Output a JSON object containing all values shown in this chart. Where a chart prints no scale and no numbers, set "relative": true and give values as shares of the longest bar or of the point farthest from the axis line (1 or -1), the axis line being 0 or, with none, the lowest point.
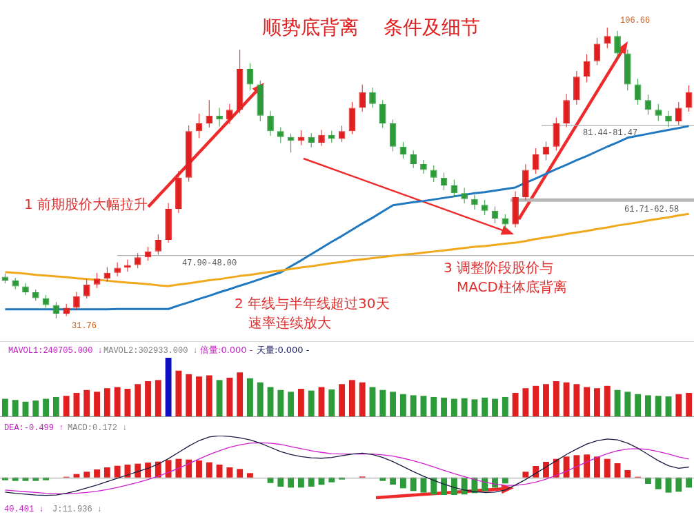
{
  "chart_data": [
    {
      "type": "candlestick",
      "title": "顺势底背离    条件及细节",
      "categories": [
        null,
        null,
        null,
        null,
        null,
        null,
        null,
        null,
        null,
        null,
        null,
        null,
        null,
        null,
        null,
        null,
        null,
        null,
        null,
        null,
        null,
        null,
        null,
        null,
        null,
        null,
        null,
        null,
        null,
        null,
        null,
        null,
        null,
        null,
        null,
        null,
        null,
        null,
        null,
        null,
        null,
        null,
        null,
        null,
        null,
        null,
        null,
        null,
        null,
        null,
        null,
        null,
        null,
        null,
        null,
        null,
        null,
        null,
        null,
        null,
        null,
        null,
        null,
        null,
        null,
        null,
        null,
        null
      ],
      "ohlc": [
        [
          42.5,
          43.3,
          40.8,
          41.5
        ],
        [
          41.5,
          42.2,
          39.3,
          40.0
        ],
        [
          40.0,
          40.9,
          37.8,
          38.5
        ],
        [
          38.5,
          39.2,
          36.3,
          37.0
        ],
        [
          37.0,
          37.8,
          34.5,
          35.2
        ],
        [
          35.2,
          36.0,
          31.76,
          33.0
        ],
        [
          33.0,
          35.5,
          32.4,
          34.5
        ],
        [
          34.5,
          38.6,
          33.9,
          37.5
        ],
        [
          37.5,
          41.8,
          36.9,
          40.5
        ],
        [
          40.5,
          43.5,
          39.6,
          42.0
        ],
        [
          42.0,
          45.0,
          41.2,
          43.5
        ],
        [
          43.5,
          46.2,
          42.6,
          44.8
        ],
        [
          44.8,
          46.9,
          43.8,
          45.5
        ],
        [
          45.5,
          48.6,
          44.7,
          47.5
        ],
        [
          47.5,
          50.2,
          46.6,
          49.0
        ],
        [
          49.0,
          53.4,
          48.2,
          52.0
        ],
        [
          52.0,
          61.5,
          51.3,
          60.0
        ],
        [
          60.0,
          69.8,
          58.9,
          68.0
        ],
        [
          68.0,
          81.5,
          67.0,
          80.0
        ],
        [
          80.0,
          84.5,
          78.2,
          82.0
        ],
        [
          82.0,
          88.0,
          80.9,
          84.0
        ],
        [
          84.0,
          86.0,
          81.2,
          83.0
        ],
        [
          83.0,
          87.0,
          81.8,
          85.5
        ],
        [
          85.5,
          101.0,
          84.6,
          96.0
        ],
        [
          96.0,
          97.5,
          90.5,
          92.0
        ],
        [
          92.0,
          93.0,
          82.5,
          84.0
        ],
        [
          84.0,
          85.2,
          78.8,
          80.0
        ],
        [
          80.0,
          81.0,
          76.9,
          78.5
        ],
        [
          78.5,
          79.4,
          74.5,
          77.5
        ],
        [
          77.5,
          80.2,
          76.4,
          78.5
        ],
        [
          78.5,
          79.5,
          75.8,
          77.0
        ],
        [
          77.0,
          80.3,
          76.2,
          79.0
        ],
        [
          79.0,
          80.1,
          77.0,
          78.0
        ],
        [
          78.0,
          81.4,
          77.2,
          80.0
        ],
        [
          80.0,
          87.5,
          79.2,
          86.0
        ],
        [
          86.0,
          92.0,
          85.0,
          90.0
        ],
        [
          90.0,
          91.2,
          86.0,
          87.0
        ],
        [
          87.0,
          88.0,
          80.8,
          82.0
        ],
        [
          82.0,
          83.0,
          74.8,
          76.0
        ],
        [
          76.0,
          77.2,
          72.9,
          74.0
        ],
        [
          74.0,
          75.0,
          70.5,
          71.5
        ],
        [
          71.5,
          72.6,
          69.0,
          70.0
        ],
        [
          70.0,
          71.2,
          66.9,
          68.0
        ],
        [
          68.0,
          69.3,
          64.8,
          66.0
        ],
        [
          66.0,
          67.5,
          63.0,
          64.0
        ],
        [
          64.0,
          65.4,
          61.4,
          62.5
        ],
        [
          62.5,
          63.6,
          59.8,
          61.0
        ],
        [
          61.0,
          62.3,
          58.4,
          59.5
        ],
        [
          59.5,
          60.6,
          56.3,
          57.5
        ],
        [
          57.5,
          58.6,
          54.9,
          56.0
        ],
        [
          56.0,
          64.5,
          55.2,
          63.0
        ],
        [
          63.0,
          71.5,
          62.2,
          70.0
        ],
        [
          70.0,
          75.6,
          69.0,
          74.0
        ],
        [
          74.0,
          77.3,
          72.5,
          76.0
        ],
        [
          76.0,
          83.5,
          75.0,
          82.0
        ],
        [
          82.0,
          89.6,
          81.0,
          88.0
        ],
        [
          88.0,
          95.5,
          86.8,
          94.0
        ],
        [
          94.0,
          99.8,
          92.6,
          98.0
        ],
        [
          98.0,
          104.0,
          97.0,
          102.5
        ],
        [
          102.5,
          106.66,
          101.3,
          104.5
        ],
        [
          104.5,
          105.8,
          98.8,
          100.0
        ],
        [
          100.0,
          101.0,
          90.5,
          92.0
        ],
        [
          92.0,
          93.5,
          86.8,
          88.0
        ],
        [
          88.0,
          89.4,
          84.2,
          85.5
        ],
        [
          85.5,
          87.0,
          82.6,
          84.0
        ],
        [
          84.0,
          85.2,
          81.0,
          82.5
        ],
        [
          82.5,
          87.5,
          81.6,
          86.0
        ],
        [
          86.0,
          91.8,
          85.0,
          90.0
        ]
      ],
      "colors": [
        "#2e9b3a",
        "#2e9b3a",
        "#2e9b3a",
        "#2e9b3a",
        "#2e9b3a",
        "#2e9b3a",
        "#e02020",
        "#e02020",
        "#e02020",
        "#e02020",
        "#e02020",
        "#e02020",
        "#e02020",
        "#e02020",
        "#e02020",
        "#e02020",
        "#e02020",
        "#e02020",
        "#e02020",
        "#e02020",
        "#e02020",
        "#2e9b3a",
        "#e02020",
        "#e02020",
        "#2e9b3a",
        "#2e9b3a",
        "#2e9b3a",
        "#2e9b3a",
        "#2e9b3a",
        "#e02020",
        "#2e9b3a",
        "#e02020",
        "#2e9b3a",
        "#e02020",
        "#e02020",
        "#e02020",
        "#2e9b3a",
        "#2e9b3a",
        "#2e9b3a",
        "#2e9b3a",
        "#2e9b3a",
        "#2e9b3a",
        "#2e9b3a",
        "#2e9b3a",
        "#2e9b3a",
        "#2e9b3a",
        "#2e9b3a",
        "#2e9b3a",
        "#2e9b3a",
        "#2e9b3a",
        "#e02020",
        "#e02020",
        "#e02020",
        "#e02020",
        "#e02020",
        "#e02020",
        "#e02020",
        "#e02020",
        "#e02020",
        "#e02020",
        "#2e9b3a",
        "#2e9b3a",
        "#2e9b3a",
        "#2e9b3a",
        "#2e9b3a",
        "#2e9b3a",
        "#e02020",
        "#e02020"
      ],
      "series": [
        {
          "type": "line",
          "color": "#f0a81c",
          "values": [
            43.7,
            43.5,
            43.3,
            43.0,
            42.8,
            42.6,
            42.4,
            42.1,
            41.9,
            41.7,
            41.5,
            41.2,
            41.0,
            40.8,
            40.6,
            40.3,
            40.1,
            40.5,
            40.8,
            41.2,
            41.6,
            41.9,
            42.3,
            42.7,
            43.0,
            43.4,
            43.8,
            44.1,
            44.5,
            44.9,
            45.2,
            45.6,
            46.0,
            46.3,
            46.7,
            47.0,
            47.3,
            47.6,
            47.9,
            48.2,
            48.4,
            48.7,
            49.0,
            49.3,
            49.6,
            49.9,
            50.2,
            50.4,
            50.7,
            51.0,
            51.3,
            51.7,
            52.2,
            52.6,
            53.0,
            53.5,
            53.9,
            54.3,
            54.8,
            55.2,
            55.7,
            56.1,
            56.5,
            57.0,
            57.4,
            57.8,
            58.3,
            58.7
          ]
        },
        {
          "type": "line",
          "color": "#1f78c0",
          "values": [
            34.1,
            34.1,
            34.1,
            34.1,
            34.1,
            34.1,
            34.1,
            34.1,
            34.1,
            34.1,
            34.1,
            34.2,
            34.2,
            34.2,
            34.2,
            34.2,
            34.2,
            35.1,
            35.9,
            36.8,
            37.6,
            38.5,
            39.3,
            40.2,
            41.0,
            41.9,
            42.8,
            43.6,
            45.2,
            46.7,
            48.3,
            49.9,
            51.5,
            53.0,
            54.6,
            56.2,
            57.7,
            59.3,
            60.9,
            61.3,
            61.7,
            62.0,
            62.4,
            62.8,
            63.2,
            63.6,
            64.0,
            64.3,
            64.7,
            65.1,
            65.5,
            66.7,
            67.8,
            69.0,
            70.2,
            71.3,
            72.5,
            73.6,
            74.8,
            76.0,
            77.1,
            78.3,
            78.8,
            79.3,
            79.8,
            80.3,
            80.8,
            81.3
          ]
        }
      ],
      "bands": [
        {
          "axis": "y",
          "from": 47.9,
          "to": 48.0,
          "label": "47.90-48.00",
          "color": "#b0b0b0"
        },
        {
          "axis": "y",
          "from": 81.44,
          "to": 81.47,
          "label": "81.44-81.47",
          "color": "#b0b0b0"
        },
        {
          "axis": "y",
          "from": 61.71,
          "to": 62.58,
          "label": "61.71-62.58",
          "color": "#b8b8b8"
        }
      ],
      "annotations": [
        "1 前期股价大幅拉升",
        "2 年线与半年线超过30天",
        "速率连续放大",
        "3 调整阶段股价与",
        "MACD柱体底背离",
        "106.66",
        "31.76"
      ]
    },
    {
      "type": "bar",
      "relative": true,
      "categories": [
        null,
        null,
        null,
        null,
        null,
        null,
        null,
        null,
        null,
        null,
        null,
        null,
        null,
        null,
        null,
        null,
        null,
        null,
        null,
        null,
        null,
        null,
        null,
        null,
        null,
        null,
        null,
        null,
        null,
        null,
        null,
        null,
        null,
        null,
        null,
        null,
        null,
        null,
        null,
        null,
        null,
        null,
        null,
        null,
        null,
        null,
        null,
        null,
        null,
        null,
        null,
        null,
        null,
        null,
        null,
        null,
        null,
        null,
        null,
        null,
        null,
        null,
        null,
        null,
        null,
        null,
        null,
        null
      ],
      "values": [
        0.3,
        0.28,
        0.25,
        0.27,
        0.3,
        0.33,
        0.35,
        0.4,
        0.45,
        0.42,
        0.48,
        0.5,
        0.47,
        0.55,
        0.6,
        0.62,
        1.0,
        0.78,
        0.72,
        0.68,
        0.7,
        0.62,
        0.66,
        0.75,
        0.65,
        0.58,
        0.5,
        0.45,
        0.42,
        0.47,
        0.44,
        0.5,
        0.46,
        0.55,
        0.62,
        0.58,
        0.5,
        0.45,
        0.42,
        0.38,
        0.36,
        0.35,
        0.33,
        0.32,
        0.3,
        0.31,
        0.29,
        0.32,
        0.3,
        0.33,
        0.4,
        0.48,
        0.52,
        0.55,
        0.6,
        0.58,
        0.55,
        0.5,
        0.48,
        0.52,
        0.45,
        0.42,
        0.38,
        0.36,
        0.35,
        0.34,
        0.38,
        0.4
      ],
      "colors": [
        "#2e9b3a",
        "#2e9b3a",
        "#2e9b3a",
        "#2e9b3a",
        "#2e9b3a",
        "#2e9b3a",
        "#e02020",
        "#e02020",
        "#e02020",
        "#e02020",
        "#e02020",
        "#e02020",
        "#e02020",
        "#e02020",
        "#e02020",
        "#e02020",
        "#1010c0",
        "#e02020",
        "#e02020",
        "#e02020",
        "#e02020",
        "#2e9b3a",
        "#e02020",
        "#e02020",
        "#2e9b3a",
        "#2e9b3a",
        "#2e9b3a",
        "#2e9b3a",
        "#2e9b3a",
        "#e02020",
        "#2e9b3a",
        "#e02020",
        "#2e9b3a",
        "#e02020",
        "#e02020",
        "#e02020",
        "#2e9b3a",
        "#2e9b3a",
        "#2e9b3a",
        "#2e9b3a",
        "#2e9b3a",
        "#2e9b3a",
        "#2e9b3a",
        "#2e9b3a",
        "#2e9b3a",
        "#2e9b3a",
        "#2e9b3a",
        "#2e9b3a",
        "#2e9b3a",
        "#2e9b3a",
        "#e02020",
        "#e02020",
        "#e02020",
        "#e02020",
        "#e02020",
        "#e02020",
        "#e02020",
        "#e02020",
        "#e02020",
        "#e02020",
        "#2e9b3a",
        "#2e9b3a",
        "#2e9b3a",
        "#2e9b3a",
        "#2e9b3a",
        "#2e9b3a",
        "#e02020",
        "#e02020"
      ],
      "annotations": [
        "MAVOL1:240705.000 ↓",
        "MAVOL2:302933.000 ↓",
        "倍量:0.000 -",
        "天量:0.000 -"
      ]
    },
    {
      "type": "bar",
      "relative": true,
      "categories": [
        null,
        null,
        null,
        null,
        null,
        null,
        null,
        null,
        null,
        null,
        null,
        null,
        null,
        null,
        null,
        null,
        null,
        null,
        null,
        null,
        null,
        null,
        null,
        null,
        null,
        null,
        null,
        null,
        null,
        null,
        null,
        null,
        null,
        null,
        null,
        null,
        null,
        null,
        null,
        null,
        null,
        null,
        null,
        null,
        null,
        null,
        null,
        null,
        null,
        null,
        null,
        null,
        null,
        null,
        null,
        null,
        null,
        null,
        null,
        null,
        null,
        null,
        null,
        null,
        null,
        null,
        null,
        null
      ],
      "values": [
        -0.12,
        -0.15,
        -0.15,
        -0.15,
        -0.12,
        null,
        0.03,
        0.15,
        0.25,
        0.35,
        0.44,
        0.51,
        0.56,
        0.6,
        0.65,
        0.69,
        0.76,
        0.81,
        0.78,
        0.74,
        0.66,
        0.56,
        0.44,
        0.37,
        0.19,
        null,
        -0.24,
        -0.4,
        -0.44,
        -0.44,
        -0.4,
        -0.32,
        -0.21,
        -0.09,
        null,
        0.04,
        null,
        -0.15,
        -0.31,
        -0.47,
        -0.59,
        -0.66,
        -0.74,
        -0.76,
        -0.76,
        -0.74,
        -0.68,
        -0.59,
        -0.44,
        -0.26,
        null,
        0.25,
        0.5,
        0.68,
        0.81,
        0.91,
        0.97,
        1.0,
        0.91,
        0.81,
        0.62,
        0.32,
        0.03,
        -0.28,
        -0.51,
        -0.66,
        -0.62,
        -0.44
      ],
      "colors": [
        "#2e9b3a",
        "#2e9b3a",
        "#2e9b3a",
        "#2e9b3a",
        "#2e9b3a",
        "#2e9b3a",
        "#e02020",
        "#e02020",
        "#e02020",
        "#e02020",
        "#e02020",
        "#e02020",
        "#e02020",
        "#e02020",
        "#e02020",
        "#e02020",
        "#e02020",
        "#e02020",
        "#e02020",
        "#e02020",
        "#e02020",
        "#e02020",
        "#e02020",
        "#e02020",
        "#e02020",
        "#2e9b3a",
        "#2e9b3a",
        "#2e9b3a",
        "#2e9b3a",
        "#2e9b3a",
        "#2e9b3a",
        "#2e9b3a",
        "#2e9b3a",
        "#2e9b3a",
        "#e02020",
        "#e02020",
        "#2e9b3a",
        "#2e9b3a",
        "#2e9b3a",
        "#2e9b3a",
        "#2e9b3a",
        "#2e9b3a",
        "#2e9b3a",
        "#2e9b3a",
        "#2e9b3a",
        "#2e9b3a",
        "#2e9b3a",
        "#2e9b3a",
        "#2e9b3a",
        "#2e9b3a",
        "#e02020",
        "#e02020",
        "#e02020",
        "#e02020",
        "#e02020",
        "#e02020",
        "#e02020",
        "#e02020",
        "#e02020",
        "#e02020",
        "#e02020",
        "#e02020",
        "#e02020",
        "#2e9b3a",
        "#2e9b3a",
        "#2e9b3a",
        "#2e9b3a",
        "#2e9b3a"
      ]
    },
    {
      "type": "line",
      "relative": true,
      "categories": [
        null,
        null,
        null,
        null,
        null,
        null,
        null,
        null,
        null,
        null,
        null,
        null,
        null,
        null,
        null,
        null,
        null,
        null,
        null,
        null,
        null,
        null,
        null,
        null,
        null,
        null,
        null,
        null,
        null,
        null,
        null,
        null,
        null,
        null,
        null,
        null,
        null,
        null,
        null,
        null,
        null,
        null,
        null,
        null,
        null,
        null,
        null,
        null,
        null,
        null,
        null,
        null,
        null,
        null,
        null,
        null,
        null,
        null,
        null,
        null,
        null,
        null,
        null,
        null,
        null,
        null,
        null,
        null
      ],
      "series": [
        {
          "color": "#1a1a40",
          "values": [
            -0.35,
            -0.38,
            -0.4,
            -0.42,
            -0.43,
            -0.42,
            -0.38,
            -0.32,
            -0.25,
            -0.18,
            -0.1,
            -0.02,
            0.06,
            0.14,
            0.22,
            0.32,
            0.45,
            0.6,
            0.75,
            0.88,
            0.97,
            1.0,
            0.98,
            0.95,
            0.9,
            0.82,
            0.72,
            0.62,
            0.55,
            0.5,
            0.47,
            0.46,
            0.48,
            0.52,
            0.56,
            0.58,
            0.55,
            0.48,
            0.38,
            0.26,
            0.14,
            0.03,
            -0.07,
            -0.16,
            -0.24,
            -0.3,
            -0.34,
            -0.36,
            -0.35,
            -0.3,
            -0.18,
            -0.05,
            0.1,
            0.25,
            0.4,
            0.55,
            0.68,
            0.8,
            0.88,
            0.92,
            0.9,
            0.82,
            0.7,
            0.55,
            0.4,
            0.28,
            0.22,
            0.25
          ]
        },
        {
          "color": "#d020d0",
          "values": [
            -0.3,
            -0.32,
            -0.34,
            -0.36,
            -0.38,
            -0.39,
            -0.39,
            -0.38,
            -0.36,
            -0.33,
            -0.29,
            -0.24,
            -0.18,
            -0.12,
            -0.05,
            0.03,
            0.12,
            0.22,
            0.33,
            0.44,
            0.55,
            0.64,
            0.72,
            0.78,
            0.82,
            0.83,
            0.82,
            0.79,
            0.74,
            0.69,
            0.64,
            0.6,
            0.57,
            0.56,
            0.56,
            0.56,
            0.56,
            0.54,
            0.51,
            0.46,
            0.4,
            0.33,
            0.25,
            0.17,
            0.09,
            0.02,
            -0.05,
            -0.11,
            -0.16,
            -0.19,
            -0.19,
            -0.16,
            -0.11,
            -0.04,
            0.05,
            0.15,
            0.26,
            0.37,
            0.48,
            0.57,
            0.64,
            0.68,
            0.69,
            0.67,
            0.62,
            0.56,
            0.49,
            0.44
          ]
        }
      ],
      "annotations": [
        "DEA:-0.499 ↑",
        "MACD:0.172 ↓",
        "40.401 ↓",
        "J:11.936 ↓"
      ]
    }
  ]
}
